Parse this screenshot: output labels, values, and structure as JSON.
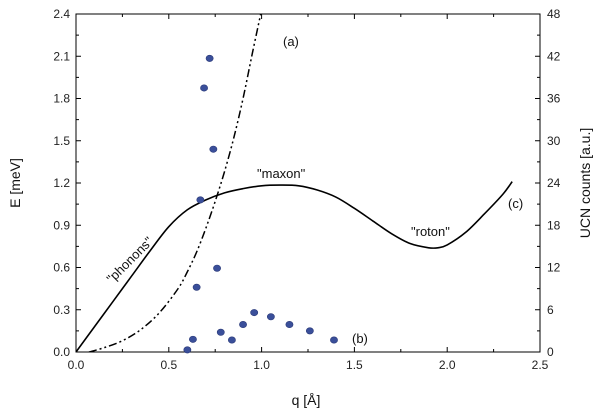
{
  "chart_data": {
    "type": "line",
    "xlabel": "q [Å]",
    "ylabel_left": "E [meV]",
    "ylabel_right": "UCN counts [a.u.]",
    "xlim": [
      0.0,
      2.5
    ],
    "ylim_left": [
      0.0,
      2.4
    ],
    "ylim_right": [
      0,
      48
    ],
    "x_ticks": [
      "0.0",
      "0.5",
      "1.0",
      "1.5",
      "2.0",
      "2.5"
    ],
    "y_left_ticks": [
      "0.0",
      "0.3",
      "0.6",
      "0.9",
      "1.2",
      "1.5",
      "1.8",
      "2.1",
      "2.4"
    ],
    "y_right_ticks": [
      "0",
      "6",
      "12",
      "18",
      "24",
      "30",
      "36",
      "42",
      "48"
    ],
    "grid": false,
    "series": [
      {
        "name": "(c)",
        "axis": "left",
        "style": "solid",
        "x": [
          0.0,
          0.1,
          0.2,
          0.3,
          0.4,
          0.5,
          0.6,
          0.7,
          0.8,
          0.9,
          1.0,
          1.1,
          1.2,
          1.3,
          1.4,
          1.5,
          1.6,
          1.7,
          1.8,
          1.9,
          1.95,
          2.0,
          2.1,
          2.2,
          2.3,
          2.35
        ],
        "y": [
          0.0,
          0.18,
          0.36,
          0.54,
          0.72,
          0.89,
          1.01,
          1.08,
          1.13,
          1.16,
          1.18,
          1.185,
          1.18,
          1.15,
          1.1,
          1.02,
          0.93,
          0.84,
          0.77,
          0.74,
          0.74,
          0.76,
          0.85,
          0.98,
          1.12,
          1.21
        ]
      },
      {
        "name": "(a)",
        "axis": "left",
        "style": "dash-dot-dot",
        "x": [
          0.07,
          0.15,
          0.25,
          0.35,
          0.45,
          0.55,
          0.6,
          0.65,
          0.7,
          0.75,
          0.8,
          0.85,
          0.9,
          0.95,
          1.0
        ],
        "y": [
          0.0,
          0.03,
          0.08,
          0.16,
          0.28,
          0.45,
          0.57,
          0.71,
          0.88,
          1.07,
          1.28,
          1.52,
          1.8,
          2.12,
          2.43
        ]
      },
      {
        "name": "(b)",
        "axis": "right",
        "style": "markers",
        "x": [
          0.6,
          0.63,
          0.65,
          0.67,
          0.69,
          0.72,
          0.74,
          0.76,
          0.78,
          0.84,
          0.9,
          0.96,
          1.05,
          1.15,
          1.26,
          1.39
        ],
        "y": [
          0.3,
          1.8,
          9.2,
          21.6,
          37.5,
          41.7,
          28.8,
          11.9,
          2.8,
          1.7,
          3.9,
          5.6,
          5.0,
          3.9,
          3.0,
          1.7
        ]
      }
    ],
    "annotations": {
      "a": "(a)",
      "b": "(b)",
      "c": "(c)",
      "phonons": "\"phonons\"",
      "maxon": "\"maxon\"",
      "roton": "\"roton\""
    }
  }
}
